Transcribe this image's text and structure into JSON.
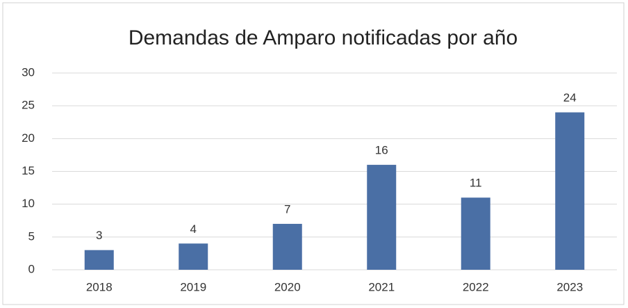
{
  "chart_data": {
    "type": "bar",
    "title": "Demandas de Amparo notificadas por año",
    "categories": [
      "2018",
      "2019",
      "2020",
      "2021",
      "2022",
      "2023"
    ],
    "values": [
      3,
      4,
      7,
      16,
      11,
      24
    ],
    "color": "#4a6fa5",
    "ylim": [
      0,
      30
    ],
    "yticks": [
      0,
      5,
      10,
      15,
      20,
      25,
      30
    ],
    "grid": true
  }
}
